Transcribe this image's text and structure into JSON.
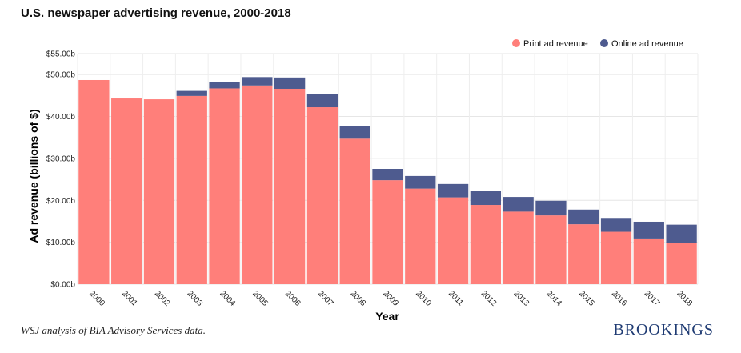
{
  "chart_data": {
    "type": "bar",
    "stacked": true,
    "title": "U.S. newspaper advertising revenue, 2000-2018",
    "xlabel": "Year",
    "ylabel": "Ad revenue (billions of $)",
    "ylim": [
      0,
      55
    ],
    "yticks": [
      0,
      10,
      20,
      30,
      40,
      50,
      55
    ],
    "ytick_labels": [
      "$0.00b",
      "$10.00b",
      "$20.00b",
      "$30.00b",
      "$40.00b",
      "$50.00b",
      "$55.00b"
    ],
    "grid": true,
    "legend_position": "top-right",
    "categories": [
      "2000",
      "2001",
      "2002",
      "2003",
      "2004",
      "2005",
      "2006",
      "2007",
      "2008",
      "2009",
      "2010",
      "2011",
      "2012",
      "2013",
      "2014",
      "2015",
      "2016",
      "2017",
      "2018"
    ],
    "series": [
      {
        "name": "Print ad revenue",
        "color": "#ff7f7a",
        "values": [
          48.7,
          44.3,
          44.1,
          44.9,
          46.7,
          47.4,
          46.6,
          42.2,
          34.7,
          24.8,
          22.8,
          20.7,
          18.9,
          17.3,
          16.4,
          14.3,
          12.5,
          10.9,
          9.9
        ]
      },
      {
        "name": "Online ad revenue",
        "color": "#4e5b8f",
        "values": [
          0.0,
          0.0,
          0.0,
          1.2,
          1.5,
          2.0,
          2.7,
          3.2,
          3.1,
          2.7,
          3.0,
          3.2,
          3.4,
          3.5,
          3.5,
          3.5,
          3.3,
          4.0,
          4.3
        ]
      }
    ]
  },
  "source_note": "WSJ analysis of BIA Advisory Services data.",
  "brand": "BROOKINGS"
}
